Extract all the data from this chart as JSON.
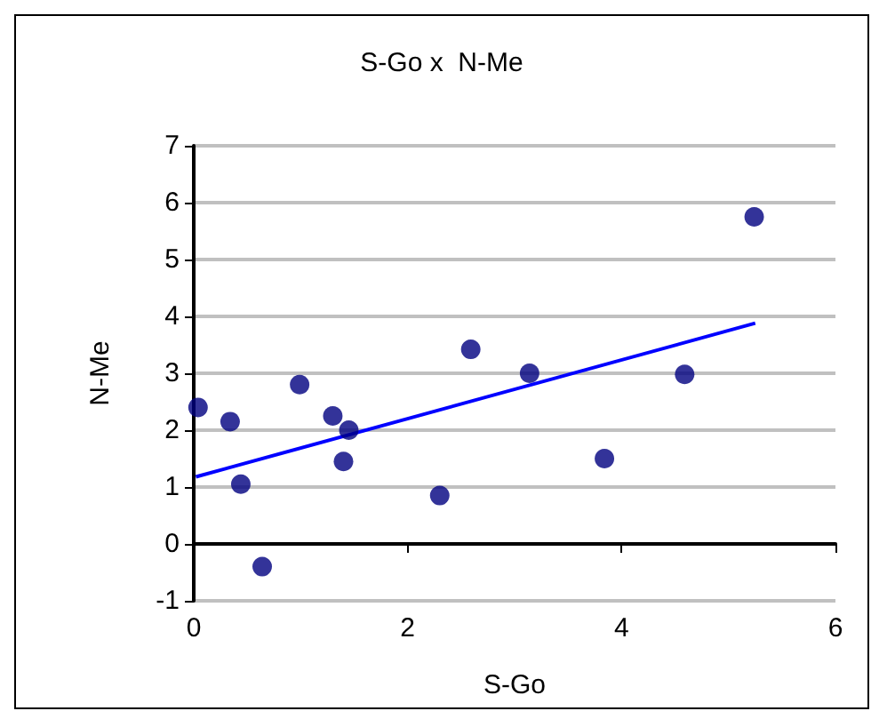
{
  "chart_data": {
    "type": "scatter",
    "title": "S-Go x  N-Me",
    "xlabel": "S-Go",
    "ylabel": "N-Me",
    "xlim": [
      0,
      6
    ],
    "xticks": [
      0,
      2,
      4,
      6
    ],
    "ylim": [
      -1,
      7
    ],
    "yticks": [
      -1,
      0,
      1,
      2,
      3,
      4,
      5,
      6,
      7
    ],
    "grid": "y",
    "marker": "circle",
    "series": [
      {
        "color": "#000080",
        "x": [
          0.04,
          0.34,
          0.44,
          0.64,
          0.99,
          1.3,
          1.45,
          1.4,
          2.3,
          2.59,
          3.14,
          3.84,
          4.59,
          5.24
        ],
        "values": [
          2.4,
          2.15,
          1.05,
          -0.4,
          2.8,
          2.25,
          2.0,
          1.45,
          0.85,
          3.42,
          3.0,
          1.5,
          2.98,
          5.75
        ]
      },
      {
        "type": "line",
        "color": "#0000ff",
        "x": [
          0.02,
          5.25
        ],
        "values": [
          1.18,
          3.88
        ],
        "marker": "none",
        "line_style": "solid"
      }
    ]
  }
}
